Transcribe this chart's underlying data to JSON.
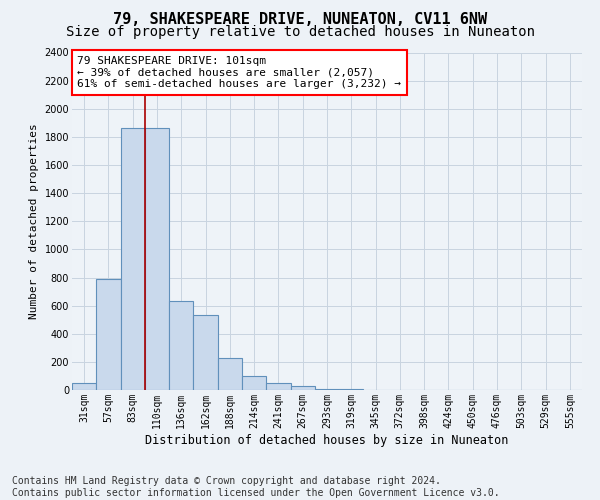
{
  "title": "79, SHAKESPEARE DRIVE, NUNEATON, CV11 6NW",
  "subtitle": "Size of property relative to detached houses in Nuneaton",
  "xlabel": "Distribution of detached houses by size in Nuneaton",
  "ylabel": "Number of detached properties",
  "bins": [
    "31sqm",
    "57sqm",
    "83sqm",
    "110sqm",
    "136sqm",
    "162sqm",
    "188sqm",
    "214sqm",
    "241sqm",
    "267sqm",
    "293sqm",
    "319sqm",
    "345sqm",
    "372sqm",
    "398sqm",
    "424sqm",
    "450sqm",
    "476sqm",
    "503sqm",
    "529sqm",
    "555sqm"
  ],
  "values": [
    50,
    790,
    1860,
    1860,
    630,
    530,
    230,
    100,
    50,
    25,
    10,
    5,
    0,
    0,
    0,
    0,
    0,
    0,
    0,
    0,
    0
  ],
  "bar_color": "#c9d9ec",
  "bar_edge_color": "#6090bb",
  "red_line_bin_index": 3,
  "annotation_line1": "79 SHAKESPEARE DRIVE: 101sqm",
  "annotation_line2": "← 39% of detached houses are smaller (2,057)",
  "annotation_line3": "61% of semi-detached houses are larger (3,232) →",
  "ylim": [
    0,
    2400
  ],
  "yticks": [
    0,
    200,
    400,
    600,
    800,
    1000,
    1200,
    1400,
    1600,
    1800,
    2000,
    2200,
    2400
  ],
  "footer1": "Contains HM Land Registry data © Crown copyright and database right 2024.",
  "footer2": "Contains public sector information licensed under the Open Government Licence v3.0.",
  "bg_color": "#edf2f7",
  "plot_bg_color": "#eef3f8",
  "grid_color": "#c8d4e0",
  "title_fontsize": 11,
  "subtitle_fontsize": 10,
  "annotation_fontsize": 8,
  "tick_fontsize": 7,
  "ylabel_fontsize": 8,
  "xlabel_fontsize": 8.5,
  "footer_fontsize": 7
}
